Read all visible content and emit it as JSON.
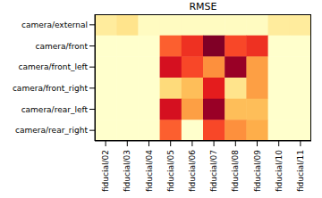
{
  "chart_data": {
    "type": "heatmap",
    "title": "RMSE",
    "x_categories": [
      "fiducial/02",
      "fiducial/03",
      "fiducial/04",
      "fiducial/05",
      "fiducial/06",
      "fiducial/07",
      "fiducial/08",
      "fiducial/09",
      "fiducial/10",
      "fiducial/11"
    ],
    "y_categories": [
      "camera/external",
      "camera/front",
      "camera/front_left",
      "camera/front_right",
      "camera/rear_left",
      "camera/rear_right"
    ],
    "values": [
      [
        0.15,
        0.2,
        0.05,
        0.05,
        0.05,
        0.05,
        0.05,
        0.05,
        0.15,
        0.15
      ],
      [
        0.02,
        0.02,
        0.02,
        0.6,
        0.7,
        1.0,
        0.65,
        0.7,
        0.02,
        0.02
      ],
      [
        0.02,
        0.02,
        0.02,
        0.8,
        0.65,
        0.5,
        0.95,
        0.45,
        0.02,
        0.02
      ],
      [
        0.02,
        0.02,
        0.02,
        0.25,
        0.35,
        0.75,
        0.2,
        0.45,
        0.02,
        0.02
      ],
      [
        0.02,
        0.02,
        0.02,
        0.8,
        0.45,
        0.95,
        0.35,
        0.35,
        0.02,
        0.02
      ],
      [
        0.02,
        0.02,
        0.02,
        0.6,
        0.02,
        0.65,
        0.5,
        0.4,
        0.02,
        0.02
      ]
    ]
  }
}
